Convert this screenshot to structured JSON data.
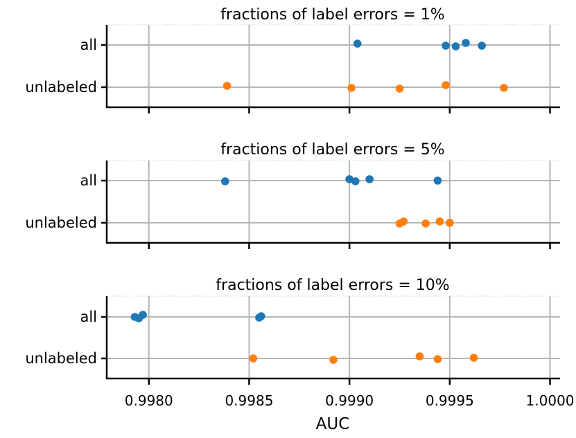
{
  "chart_data": {
    "type": "scatter",
    "xlabel": "AUC",
    "xlim": [
      0.99779,
      1.00005
    ],
    "xticks": [
      "0.9980",
      "0.9985",
      "0.9990",
      "0.9995",
      "1.0000"
    ],
    "xtick_values": [
      0.998,
      0.9985,
      0.999,
      0.9995,
      1.0
    ],
    "categories": [
      "all",
      "unlabeled"
    ],
    "grid": true,
    "colors": {
      "all": "#1f77b4",
      "unlabeled": "#ff7f0e"
    },
    "panels": [
      {
        "title": "fractions of label errors = 1%",
        "series": [
          {
            "category": "all",
            "values": [
              0.99904,
              0.99948,
              0.99953,
              0.99958,
              0.99966
            ]
          },
          {
            "category": "unlabeled",
            "values": [
              0.99839,
              0.99901,
              0.99925,
              0.99948,
              0.99977
            ]
          }
        ]
      },
      {
        "title": "fractions of label errors = 5%",
        "series": [
          {
            "category": "all",
            "values": [
              0.99838,
              0.999,
              0.99903,
              0.9991,
              0.99944
            ]
          },
          {
            "category": "unlabeled",
            "values": [
              0.99925,
              0.99927,
              0.99938,
              0.99945,
              0.9995
            ]
          }
        ]
      },
      {
        "title": "fractions of label errors = 10%",
        "series": [
          {
            "category": "all",
            "values": [
              0.99793,
              0.99795,
              0.99797,
              0.99855,
              0.99856
            ]
          },
          {
            "category": "unlabeled",
            "values": [
              0.99852,
              0.99892,
              0.99935,
              0.99944,
              0.99962
            ]
          }
        ]
      }
    ]
  }
}
